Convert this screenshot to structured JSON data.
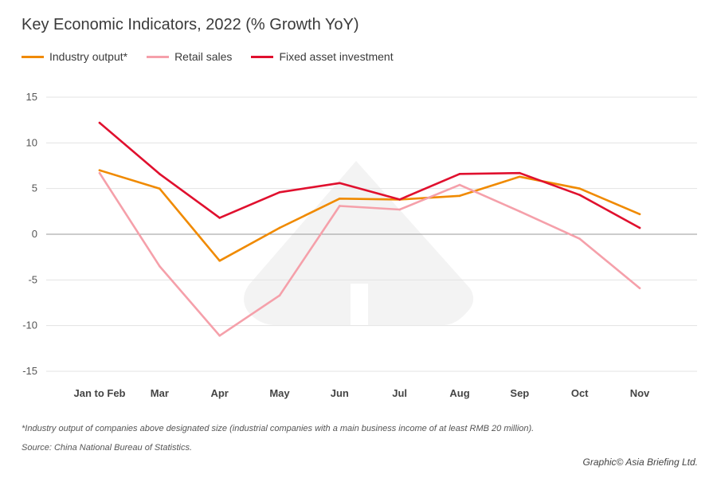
{
  "chart_data": {
    "type": "line",
    "title": "Key Economic Indicators, 2022 (% Growth YoY)",
    "categories": [
      "Jan to Feb",
      "Mar",
      "Apr",
      "May",
      "Jun",
      "Jul",
      "Aug",
      "Sep",
      "Oct",
      "Nov"
    ],
    "series": [
      {
        "name": "Industry output*",
        "color": "#f08a00",
        "values": [
          7.0,
          5.0,
          -2.9,
          0.7,
          3.9,
          3.8,
          4.2,
          6.3,
          5.0,
          2.2
        ]
      },
      {
        "name": "Retail sales",
        "color": "#f5a0aa",
        "values": [
          6.7,
          -3.5,
          -11.1,
          -6.7,
          3.1,
          2.7,
          5.4,
          2.5,
          -0.5,
          -5.9
        ]
      },
      {
        "name": "Fixed asset investment",
        "color": "#e0102e",
        "values": [
          12.2,
          6.6,
          1.8,
          4.6,
          5.6,
          3.8,
          6.6,
          6.7,
          4.3,
          0.7
        ]
      }
    ],
    "yticks": [
      "15",
      "10",
      "5",
      "0",
      "-5",
      "-10",
      "-15"
    ],
    "ylim": [
      -15,
      15
    ],
    "grid": true,
    "legend_position": "top-left"
  },
  "notes": {
    "footnote": "*Industry output of companies above designated size (industrial companies with a main business income of at least RMB 20 million).",
    "source": "Source: China National Bureau of Statistics.",
    "credit": "Graphic© Asia Briefing Ltd."
  }
}
